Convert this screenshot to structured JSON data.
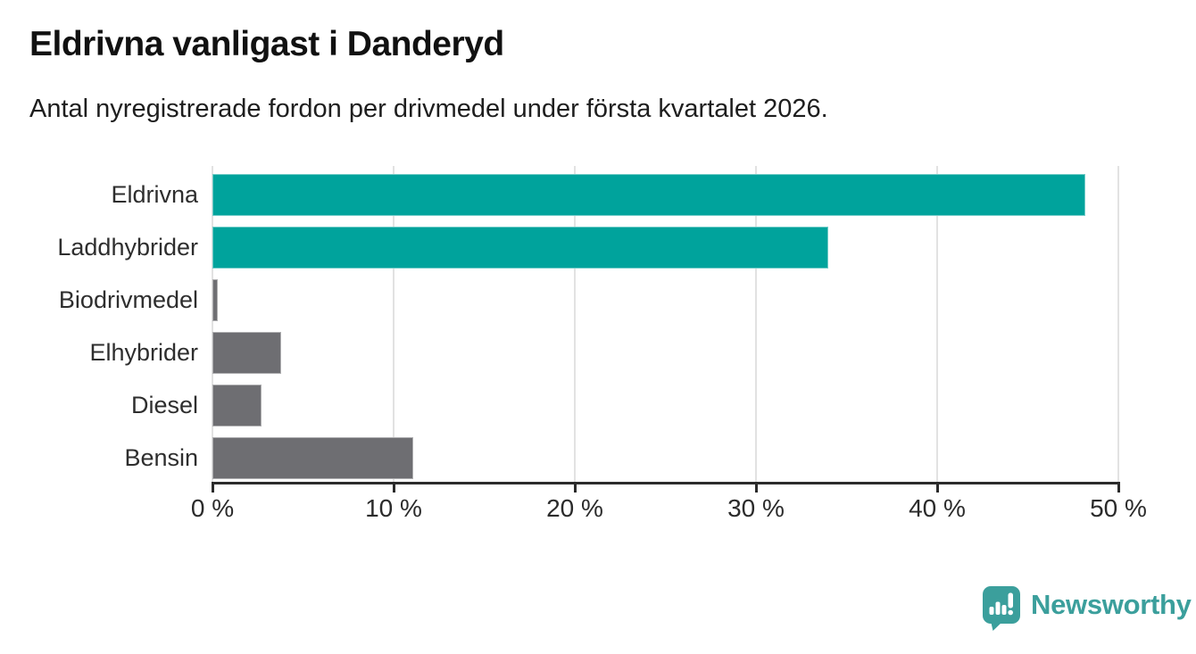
{
  "title": "Eldrivna vanligast i Danderyd",
  "subtitle": "Antal nyregistrerade fordon per drivmedel under första kvartalet 2026.",
  "colors": {
    "teal": "#00a39c",
    "gray": "#6e6e72",
    "grid": "#e2e2e2",
    "axis": "#2b2b2b",
    "brand": "#3b9f9c",
    "label_text": "#2e2e2e"
  },
  "chart_data": {
    "type": "bar",
    "orientation": "horizontal",
    "title": "Eldrivna vanligast i Danderyd",
    "subtitle": "Antal nyregistrerade fordon per drivmedel under första kvartalet 2026.",
    "categories": [
      "Eldrivna",
      "Laddhybrider",
      "Biodrivmedel",
      "Elhybrider",
      "Diesel",
      "Bensin"
    ],
    "values": [
      48.2,
      34.0,
      0.3,
      3.8,
      2.7,
      11.1
    ],
    "unit": "%",
    "bar_colors": [
      "#00a39c",
      "#00a39c",
      "#6e6e72",
      "#6e6e72",
      "#6e6e72",
      "#6e6e72"
    ],
    "xlim": [
      0,
      50
    ],
    "x_ticks": [
      0,
      10,
      20,
      30,
      40,
      50
    ],
    "x_tick_labels": [
      "0 %",
      "10 %",
      "20 %",
      "30 %",
      "40 %",
      "50 %"
    ],
    "grid": true,
    "legend": false
  },
  "branding": {
    "logo_text": "Newsworthy",
    "logo_icon": "speech-bubble-bar-chart-exclamation"
  }
}
